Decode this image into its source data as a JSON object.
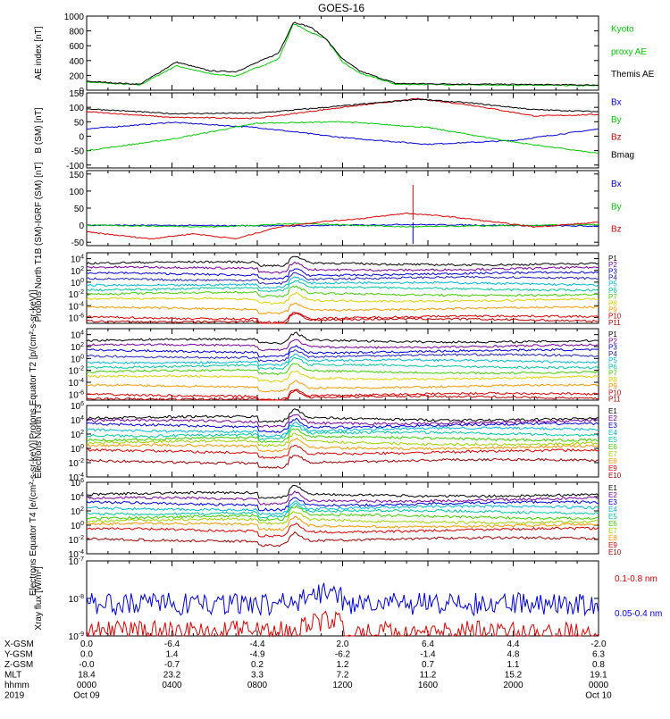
{
  "title": "GOES-16",
  "colors": {
    "black": "#000000",
    "blue": "#0000dd",
    "green": "#00cc00",
    "red": "#dd0000",
    "purple": "#7a00a0",
    "navy": "#2020c0",
    "cyan": "#00b8d8",
    "teal": "#00c8a0",
    "lime": "#40d000",
    "yellowgreen": "#a0d000",
    "yellow": "#e0d000",
    "orange": "#ff9800",
    "darkred": "#c00000",
    "maroon": "#a00000"
  },
  "x_axis": {
    "ticks": [
      "0000",
      "0400",
      "0800",
      "1200",
      "1600",
      "2000",
      "0000"
    ],
    "rows": [
      {
        "label": "X-GSM",
        "values": [
          "0.0",
          "-6.4",
          "-4.4",
          "2.0",
          "6.4",
          "4.4",
          "-2.0"
        ]
      },
      {
        "label": "Y-GSM",
        "values": [
          "0.0",
          "1.4",
          "-4.9",
          "-6.2",
          "-1.4",
          "4.8",
          "6.3"
        ]
      },
      {
        "label": "Z-GSM",
        "values": [
          "-0.0",
          "-0.7",
          "0.2",
          "1.2",
          "0.7",
          "1.1",
          "0.8"
        ]
      },
      {
        "label": "MLT",
        "values": [
          "18.4",
          "23.2",
          "3.3",
          "7.2",
          "11.2",
          "15.2",
          "19.1"
        ]
      },
      {
        "label": "hhmm",
        "values": [
          "0000",
          "0400",
          "0800",
          "1200",
          "1600",
          "2000",
          "0000"
        ]
      },
      {
        "label": "2019",
        "values": [
          "Oct 09",
          "",
          "",
          "",
          "",
          "",
          "Oct 10"
        ]
      }
    ]
  },
  "chart_data": [
    {
      "type": "line",
      "ylabel": "AE index [nT]",
      "yticks": [
        "0",
        "200",
        "400",
        "600",
        "800",
        "1000"
      ],
      "ylim": [
        0,
        1000
      ],
      "series": [
        {
          "name": "Kyoto proxy AE",
          "color": "#00cc00",
          "key": [
            [
              0,
              110
            ],
            [
              2.5,
              70
            ],
            [
              4.2,
              330
            ],
            [
              5.8,
              220
            ],
            [
              7,
              190
            ],
            [
              9,
              420
            ],
            [
              9.7,
              900
            ],
            [
              10.5,
              780
            ],
            [
              11.2,
              700
            ],
            [
              12,
              380
            ],
            [
              12.8,
              230
            ],
            [
              14.5,
              80
            ],
            [
              24,
              60
            ]
          ]
        },
        {
          "name": "Themis AE",
          "color": "#000000",
          "key": [
            [
              0,
              120
            ],
            [
              2.5,
              80
            ],
            [
              4.2,
              380
            ],
            [
              5.8,
              260
            ],
            [
              7,
              250
            ],
            [
              9,
              500
            ],
            [
              9.7,
              920
            ],
            [
              10.5,
              850
            ],
            [
              11.2,
              700
            ],
            [
              12,
              420
            ],
            [
              12.8,
              260
            ],
            [
              14.5,
              90
            ],
            [
              24,
              70
            ]
          ]
        }
      ],
      "legend": [
        {
          "text": "Kyoto",
          "color": "#00cc00"
        },
        {
          "text": "proxy AE",
          "color": "#00cc00"
        },
        {
          "text": "Themis AE",
          "color": "#000000"
        }
      ]
    },
    {
      "type": "line",
      "ylabel": "B (SM) [nT]",
      "yticks": [
        "-100",
        "-50",
        "0",
        "50",
        "100",
        "150"
      ],
      "ylim": [
        -110,
        150
      ],
      "series": [
        {
          "name": "Bx",
          "color": "#0000dd",
          "key": [
            [
              0,
              25
            ],
            [
              4,
              48
            ],
            [
              8,
              30
            ],
            [
              12,
              -5
            ],
            [
              16,
              -28
            ],
            [
              20,
              -15
            ],
            [
              24,
              25
            ]
          ]
        },
        {
          "name": "By",
          "color": "#00cc00",
          "key": [
            [
              0,
              -50
            ],
            [
              4,
              -10
            ],
            [
              8,
              45
            ],
            [
              12,
              50
            ],
            [
              16,
              30
            ],
            [
              20,
              -20
            ],
            [
              24,
              -60
            ]
          ]
        },
        {
          "name": "Bz",
          "color": "#dd0000",
          "key": [
            [
              0,
              85
            ],
            [
              4,
              65
            ],
            [
              8,
              62
            ],
            [
              12,
              100
            ],
            [
              15.5,
              130
            ],
            [
              18,
              108
            ],
            [
              21,
              70
            ],
            [
              24,
              75
            ]
          ]
        },
        {
          "name": "Bmag",
          "color": "#000000",
          "key": [
            [
              0,
              95
            ],
            [
              4,
              78
            ],
            [
              8,
              80
            ],
            [
              12,
              105
            ],
            [
              15.5,
              128
            ],
            [
              18,
              115
            ],
            [
              21,
              92
            ],
            [
              24,
              85
            ]
          ]
        }
      ],
      "legend": [
        {
          "text": "Bx",
          "color": "#0000dd"
        },
        {
          "text": "By",
          "color": "#00cc00"
        },
        {
          "text": "Bz",
          "color": "#dd0000"
        },
        {
          "text": "Bmag",
          "color": "#000000"
        }
      ]
    },
    {
      "type": "line",
      "ylabel": "B (SM)-IGRF (SM) [nT]",
      "yticks": [
        "-50",
        "0",
        "50",
        "100",
        "150"
      ],
      "ylim": [
        -60,
        160
      ],
      "series": [
        {
          "name": "Bx",
          "color": "#0000dd",
          "key": [
            [
              0,
              0
            ],
            [
              10,
              -2
            ],
            [
              15,
              2
            ],
            [
              24,
              -3
            ]
          ]
        },
        {
          "name": "By",
          "color": "#00cc00",
          "key": [
            [
              0,
              0
            ],
            [
              6,
              -5
            ],
            [
              10,
              5
            ],
            [
              15,
              -5
            ],
            [
              24,
              2
            ]
          ]
        },
        {
          "name": "Bz",
          "color": "#dd0000",
          "key": [
            [
              0,
              -20
            ],
            [
              3,
              -40
            ],
            [
              5,
              -25
            ],
            [
              7,
              -40
            ],
            [
              9,
              -5
            ],
            [
              11,
              10
            ],
            [
              13,
              20
            ],
            [
              15,
              35
            ],
            [
              17,
              25
            ],
            [
              19,
              10
            ],
            [
              21,
              -5
            ],
            [
              24,
              8
            ]
          ]
        }
      ],
      "legend": [
        {
          "text": "Bx",
          "color": "#0000dd"
        },
        {
          "text": "By",
          "color": "#00cc00"
        },
        {
          "text": "Bz",
          "color": "#dd0000"
        }
      ]
    },
    {
      "type": "line",
      "ylabel": "Protons North T1",
      "yticks": [
        "10^-6",
        "10^-4",
        "10^-2",
        "10^0",
        "10^2",
        "10^4"
      ],
      "ylim": [
        -7,
        5
      ],
      "series": [
        {
          "name": "P1",
          "color": "#000000",
          "level": 3.2
        },
        {
          "name": "P2",
          "color": "#7a00a0",
          "level": 2.3
        },
        {
          "name": "P3",
          "color": "#0000dd",
          "level": 1.4
        },
        {
          "name": "P4",
          "color": "#2020c0",
          "level": 0.6
        },
        {
          "name": "P5",
          "color": "#00b8d8",
          "level": -0.3
        },
        {
          "name": "P6",
          "color": "#00c8a0",
          "level": -1.1
        },
        {
          "name": "P7",
          "color": "#40d000",
          "level": -2.0
        },
        {
          "name": "P8",
          "color": "#e0d000",
          "level": -3.0
        },
        {
          "name": "P9",
          "color": "#ff9800",
          "level": -4.5
        },
        {
          "name": "P10",
          "color": "#dd0000",
          "level": -6.0
        },
        {
          "name": "P11",
          "color": "#c00000",
          "level": -6.5
        }
      ],
      "legend": [
        {
          "text": "P1",
          "color": "#000000"
        },
        {
          "text": "P2",
          "color": "#7a00a0"
        },
        {
          "text": "P3",
          "color": "#0000dd"
        },
        {
          "text": "P4",
          "color": "#2020c0"
        },
        {
          "text": "P5",
          "color": "#00b8d8"
        },
        {
          "text": "P6",
          "color": "#00c8a0"
        },
        {
          "text": "P7",
          "color": "#40d000"
        },
        {
          "text": "P8",
          "color": "#e0d000"
        },
        {
          "text": "P9",
          "color": "#ff9800"
        },
        {
          "text": "P10",
          "color": "#dd0000"
        },
        {
          "text": "P11",
          "color": "#c00000"
        }
      ]
    },
    {
      "type": "line",
      "ylabel": "Protons Equator T2 [p/(cm²-s-sr-keV)]",
      "yticks": [
        "10^-6",
        "10^-4",
        "10^-2",
        "10^0",
        "10^2",
        "10^4"
      ],
      "ylim": [
        -7,
        5
      ],
      "series": [
        {
          "name": "P1",
          "color": "#000000",
          "level": 3.0
        },
        {
          "name": "P2",
          "color": "#7a00a0",
          "level": 2.1
        },
        {
          "name": "P3",
          "color": "#0000dd",
          "level": 1.2
        },
        {
          "name": "P4",
          "color": "#2020c0",
          "level": 0.4
        },
        {
          "name": "P5",
          "color": "#00b8d8",
          "level": -0.5
        },
        {
          "name": "P6",
          "color": "#00c8a0",
          "level": -1.3
        },
        {
          "name": "P7",
          "color": "#40d000",
          "level": -2.2
        },
        {
          "name": "P8",
          "color": "#e0d000",
          "level": -3.2
        },
        {
          "name": "P9",
          "color": "#ff9800",
          "level": -4.7
        },
        {
          "name": "P10",
          "color": "#dd0000",
          "level": -6.1
        },
        {
          "name": "P11",
          "color": "#c00000",
          "level": -6.6
        }
      ],
      "legend": [
        {
          "text": "P1",
          "color": "#000000"
        },
        {
          "text": "P2",
          "color": "#7a00a0"
        },
        {
          "text": "P3",
          "color": "#0000dd"
        },
        {
          "text": "P4",
          "color": "#2020c0"
        },
        {
          "text": "P5",
          "color": "#00b8d8"
        },
        {
          "text": "P6",
          "color": "#00c8a0"
        },
        {
          "text": "P7",
          "color": "#40d000"
        },
        {
          "text": "P8",
          "color": "#e0d000"
        },
        {
          "text": "P9",
          "color": "#ff9800"
        },
        {
          "text": "P10",
          "color": "#dd0000"
        },
        {
          "text": "P11",
          "color": "#c00000"
        }
      ]
    },
    {
      "type": "line",
      "ylabel": "Electrons North T3",
      "yticks": [
        "10^-4",
        "10^-2",
        "10^0",
        "10^2",
        "10^4",
        "10^6"
      ],
      "ylim": [
        -4,
        6
      ],
      "series": [
        {
          "name": "E1",
          "color": "#000000",
          "level": 4.2
        },
        {
          "name": "E2",
          "color": "#7a00a0",
          "level": 3.7
        },
        {
          "name": "E3",
          "color": "#0000dd",
          "level": 3.2
        },
        {
          "name": "E4",
          "color": "#00b8d8",
          "level": 2.6
        },
        {
          "name": "E5",
          "color": "#00c8a0",
          "level": 2.0
        },
        {
          "name": "E6",
          "color": "#40d000",
          "level": 1.4
        },
        {
          "name": "E7",
          "color": "#a0d000",
          "level": 0.8
        },
        {
          "name": "E8",
          "color": "#ff9800",
          "level": 0.2
        },
        {
          "name": "E9",
          "color": "#dd0000",
          "level": -0.5
        },
        {
          "name": "E10",
          "color": "#a00000",
          "level": -1.8
        }
      ],
      "legend": [
        {
          "text": "E1",
          "color": "#000000"
        },
        {
          "text": "E2",
          "color": "#7a00a0"
        },
        {
          "text": "E3",
          "color": "#0000dd"
        },
        {
          "text": "E4",
          "color": "#00b8d8"
        },
        {
          "text": "E5",
          "color": "#00c8a0"
        },
        {
          "text": "E6",
          "color": "#40d000"
        },
        {
          "text": "E7",
          "color": "#a0d000"
        },
        {
          "text": "E8",
          "color": "#ff9800"
        },
        {
          "text": "E9",
          "color": "#dd0000"
        },
        {
          "text": "E10",
          "color": "#a00000"
        }
      ]
    },
    {
      "type": "line",
      "ylabel": "Electrons Equator T4 [e/(cm²-s-sr-keV)]",
      "yticks": [
        "10^-4",
        "10^-2",
        "10^0",
        "10^2",
        "10^4",
        "10^6"
      ],
      "ylim": [
        -4,
        6
      ],
      "series": [
        {
          "name": "E1",
          "color": "#000000",
          "level": 4.3
        },
        {
          "name": "E2",
          "color": "#7a00a0",
          "level": 3.6
        },
        {
          "name": "E3",
          "color": "#0000dd",
          "level": 3.0
        },
        {
          "name": "E4",
          "color": "#00b8d8",
          "level": 2.4
        },
        {
          "name": "E5",
          "color": "#00c8a0",
          "level": 1.8
        },
        {
          "name": "E6",
          "color": "#40d000",
          "level": 1.2
        },
        {
          "name": "E7",
          "color": "#a0d000",
          "level": 0.6
        },
        {
          "name": "E8",
          "color": "#ff9800",
          "level": 0.0
        },
        {
          "name": "E9",
          "color": "#dd0000",
          "level": -0.7
        },
        {
          "name": "E10",
          "color": "#a00000",
          "level": -2.0
        }
      ],
      "legend": [
        {
          "text": "E1",
          "color": "#000000"
        },
        {
          "text": "E2",
          "color": "#7a00a0"
        },
        {
          "text": "E3",
          "color": "#0000dd"
        },
        {
          "text": "E4",
          "color": "#00b8d8"
        },
        {
          "text": "E5",
          "color": "#00c8a0"
        },
        {
          "text": "E6",
          "color": "#40d000"
        },
        {
          "text": "E7",
          "color": "#a0d000"
        },
        {
          "text": "E8",
          "color": "#ff9800"
        },
        {
          "text": "E9",
          "color": "#dd0000"
        },
        {
          "text": "E10",
          "color": "#a00000"
        }
      ]
    },
    {
      "type": "line",
      "ylabel": "Xray flux [W/m²]",
      "yticks": [
        "10^-9",
        "10^-8",
        "10^-7"
      ],
      "ylim": [
        -9,
        -7
      ],
      "series": [
        {
          "name": "0.1-0.8 nm",
          "color": "#dd0000",
          "level": -8.9
        },
        {
          "name": "0.05-0.4 nm",
          "color": "#0000dd",
          "level": -8.15
        }
      ],
      "legend": [
        {
          "text": "0.1-0.8 nm",
          "color": "#dd0000"
        },
        {
          "text": "0.05-0.4 nm",
          "color": "#0000dd"
        }
      ]
    }
  ]
}
